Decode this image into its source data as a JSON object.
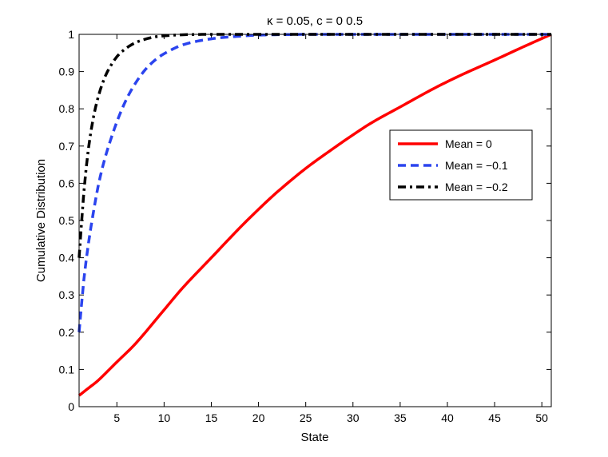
{
  "chart_data": {
    "type": "line",
    "title": "κ = 0.05, c = 0 0.5",
    "xlabel": "State",
    "ylabel": "Cumulative Distribution",
    "xlim": [
      1,
      51
    ],
    "ylim": [
      0,
      1
    ],
    "xticks": [
      5,
      10,
      15,
      20,
      25,
      30,
      35,
      40,
      45,
      50
    ],
    "yticks": [
      0,
      0.1,
      0.2,
      0.3,
      0.4,
      0.5,
      0.6,
      0.7,
      0.8,
      0.9,
      1
    ],
    "xtick_labels": [
      "5",
      "10",
      "15",
      "20",
      "25",
      "30",
      "35",
      "40",
      "45",
      "50"
    ],
    "ytick_labels": [
      "0",
      "0.1",
      "0.2",
      "0.3",
      "0.4",
      "0.5",
      "0.6",
      "0.7",
      "0.8",
      "0.9",
      "1"
    ],
    "grid": false,
    "legend_position": "upper-right-inside",
    "series": [
      {
        "name": "Mean = 0",
        "color": "#ff0000",
        "line_style": "solid",
        "x": [
          1,
          2,
          3,
          5,
          7,
          10,
          12,
          15,
          18,
          20,
          22,
          25,
          28,
          30,
          32,
          35,
          38,
          40,
          42,
          45,
          48,
          51
        ],
        "y": [
          0.03,
          0.05,
          0.07,
          0.12,
          0.17,
          0.26,
          0.32,
          0.4,
          0.48,
          0.53,
          0.577,
          0.64,
          0.695,
          0.73,
          0.763,
          0.805,
          0.847,
          0.873,
          0.897,
          0.931,
          0.966,
          1.0
        ]
      },
      {
        "name": "Mean = −0.1",
        "color": "#2b44ee",
        "line_style": "dashed",
        "x": [
          1,
          1.5,
          2,
          2.5,
          3,
          3.5,
          4,
          5,
          6,
          7,
          8,
          9,
          10,
          12,
          15,
          18,
          20,
          25,
          30,
          40,
          51
        ],
        "y": [
          0.2,
          0.34,
          0.44,
          0.52,
          0.59,
          0.645,
          0.69,
          0.765,
          0.825,
          0.87,
          0.905,
          0.93,
          0.948,
          0.972,
          0.988,
          0.995,
          0.998,
          1.0,
          1.0,
          1.0,
          1.0
        ]
      },
      {
        "name": "Mean = −0.2",
        "color": "#000000",
        "line_style": "dashdot",
        "x": [
          1,
          1.5,
          2,
          2.5,
          3,
          3.5,
          4,
          5,
          6,
          7,
          8,
          9,
          10,
          12,
          15,
          20,
          51
        ],
        "y": [
          0.4,
          0.575,
          0.695,
          0.775,
          0.83,
          0.87,
          0.9,
          0.94,
          0.963,
          0.978,
          0.987,
          0.993,
          0.996,
          0.999,
          1.0,
          1.0,
          1.0
        ]
      }
    ]
  }
}
